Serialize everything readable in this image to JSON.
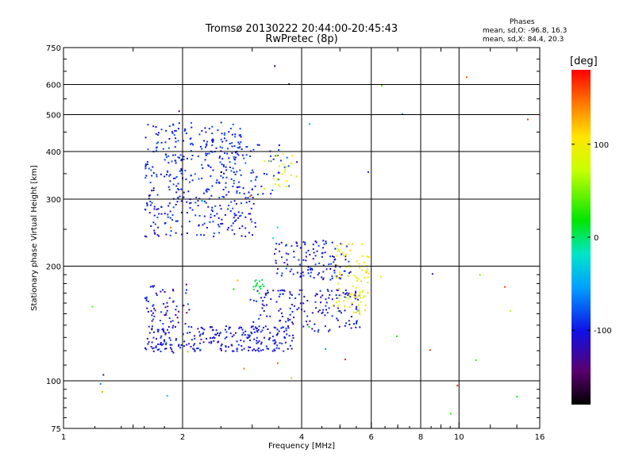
{
  "chart_data": {
    "type": "scatter",
    "title": "Tromsø 20130222 20:44:00-20:45:43",
    "subtitle": "RwPretec (8p)",
    "xlabel": "Frequency [MHz]",
    "ylabel": "Stationary phase Virtual Height [km]",
    "x_scale": "log",
    "y_scale": "log",
    "xlim": [
      1,
      16
    ],
    "ylim": [
      75,
      750
    ],
    "x_ticks": [
      1,
      2,
      4,
      6,
      8,
      10,
      16
    ],
    "x_tick_labels": [
      "1",
      "2",
      "4",
      "6",
      "8",
      "10",
      "16"
    ],
    "y_ticks": [
      75,
      100,
      200,
      300,
      400,
      500,
      600,
      750
    ],
    "y_tick_labels": [
      "75",
      "100",
      "200",
      "300",
      "400",
      "500",
      "600",
      "750"
    ],
    "grid": true,
    "stats": {
      "title": "Phases",
      "o_line": "mean, sd,O: -96.8, 16.3",
      "x_line": "mean, sd,X:  84.4, 20.3"
    },
    "colorbar": {
      "label": "[deg]",
      "range": [
        -180,
        180
      ],
      "tick_values": [
        -100,
        0,
        100
      ],
      "tick_labels": [
        "-100",
        "0",
        "100"
      ]
    },
    "point_color_scale": "phase (deg), rainbow colormap",
    "clusters": [
      {
        "x_range": [
          1.6,
          2.8
        ],
        "y_range": [
          330,
          480
        ],
        "count": 220,
        "phase": [
          -110,
          -75
        ]
      },
      {
        "x_range": [
          1.6,
          3.1
        ],
        "y_range": [
          240,
          330
        ],
        "count": 200,
        "phase": [
          -115,
          -80
        ]
      },
      {
        "x_range": [
          2.6,
          3.7
        ],
        "y_range": [
          310,
          420
        ],
        "count": 60,
        "phase": [
          -110,
          -70
        ]
      },
      {
        "x_range": [
          3.2,
          3.9
        ],
        "y_range": [
          320,
          400
        ],
        "count": 25,
        "phase": [
          70,
          110
        ]
      },
      {
        "x_range": [
          1.6,
          3.8
        ],
        "y_range": [
          120,
          140
        ],
        "count": 260,
        "phase": [
          -120,
          -85
        ]
      },
      {
        "x_range": [
          3.0,
          5.6
        ],
        "y_range": [
          135,
          175
        ],
        "count": 160,
        "phase": [
          -125,
          -85
        ]
      },
      {
        "x_range": [
          3.4,
          5.3
        ],
        "y_range": [
          185,
          235
        ],
        "count": 120,
        "phase": [
          -120,
          -80
        ]
      },
      {
        "x_range": [
          1.6,
          2.1
        ],
        "y_range": [
          140,
          180
        ],
        "count": 60,
        "phase": [
          -150,
          -80
        ]
      },
      {
        "x_range": [
          4.8,
          5.9
        ],
        "y_range": [
          150,
          230
        ],
        "count": 90,
        "phase": [
          70,
          120
        ]
      },
      {
        "x_range": [
          3.0,
          3.2
        ],
        "y_range": [
          170,
          185
        ],
        "count": 15,
        "phase": [
          -5,
          15
        ]
      },
      {
        "x_range": [
          1.1,
          16
        ],
        "y_range": [
          80,
          700
        ],
        "count": 45,
        "phase": [
          -180,
          180
        ]
      }
    ]
  }
}
